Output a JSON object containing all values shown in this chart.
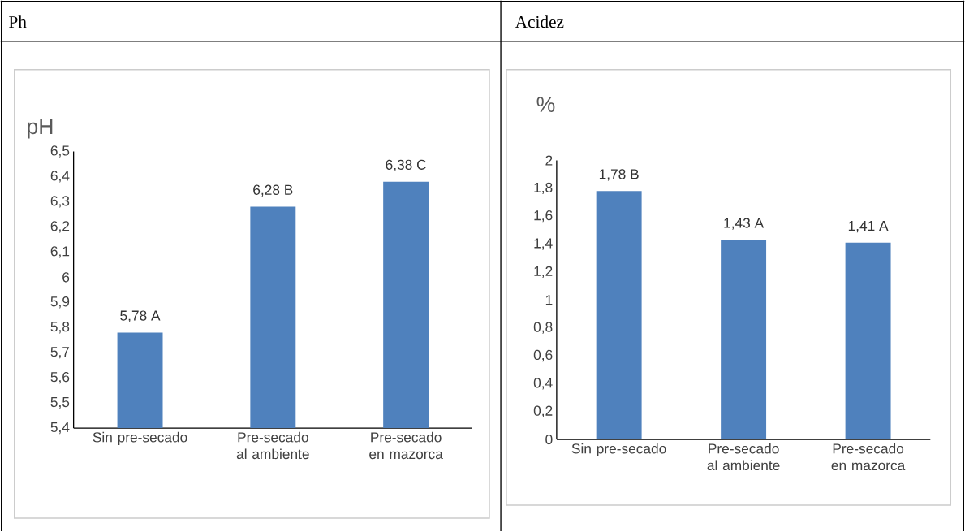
{
  "chart_data": [
    {
      "type": "bar",
      "title": "Ph",
      "ylabel": "pH",
      "categories": [
        "Sin pre-secado",
        "Pre-secado al ambiente",
        "Pre-secado en mazorca"
      ],
      "values": [
        5.78,
        6.28,
        6.38
      ],
      "value_labels": [
        "5,78 A",
        "6,28 B",
        "6,38 C"
      ],
      "color": "#4f81bd",
      "ylim": [
        5.4,
        6.5
      ],
      "yticks": [
        {
          "value": 5.4,
          "label": "5,4"
        },
        {
          "value": 5.5,
          "label": "5,5"
        },
        {
          "value": 5.6,
          "label": "5,6"
        },
        {
          "value": 5.7,
          "label": "5,7"
        },
        {
          "value": 5.8,
          "label": "5,8"
        },
        {
          "value": 5.9,
          "label": "5,9"
        },
        6,
        {
          "value": 6.1,
          "label": "6,1"
        },
        {
          "value": 6.2,
          "label": "6,2"
        },
        {
          "value": 6.3,
          "label": "6,3"
        },
        {
          "value": 6.4,
          "label": "6,4"
        },
        {
          "value": 6.5,
          "label": "6,5"
        }
      ]
    },
    {
      "type": "bar",
      "title": "Acidez",
      "ylabel": "%",
      "categories": [
        "Sin pre-secado",
        "Pre-secado al ambiente",
        "Pre-secado en mazorca"
      ],
      "values": [
        1.78,
        1.43,
        1.41
      ],
      "value_labels": [
        "1,78 B",
        "1,43 A",
        "1,41 A"
      ],
      "color": "#4f81bd",
      "ylim": [
        0,
        2
      ],
      "yticks": [
        0,
        {
          "value": 0.2,
          "label": "0,2"
        },
        {
          "value": 0.4,
          "label": "0,4"
        },
        {
          "value": 0.6,
          "label": "0,6"
        },
        {
          "value": 0.8,
          "label": "0,8"
        },
        1,
        {
          "value": 1.2,
          "label": "1,2"
        },
        {
          "value": 1.4,
          "label": "1,4"
        },
        {
          "value": 1.6,
          "label": "1,6"
        },
        {
          "value": 1.8,
          "label": "1,8"
        },
        2
      ]
    }
  ]
}
